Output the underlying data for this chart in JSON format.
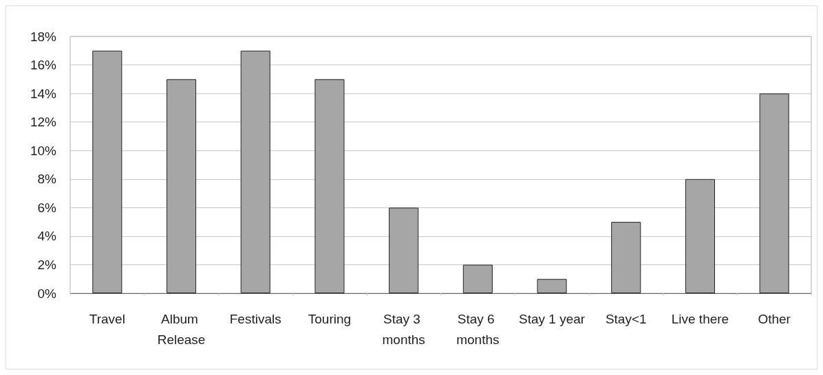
{
  "chart_data": {
    "type": "bar",
    "categories": [
      "Travel",
      "Album Release",
      "Festivals",
      "Touring",
      "Stay 3 months",
      "Stay 6 months",
      "Stay 1 year",
      "Stay<1",
      "Live there",
      "Other"
    ],
    "values": [
      17,
      15,
      17,
      15,
      6,
      2,
      1,
      5,
      8,
      14
    ],
    "color": "#a6a6a6",
    "ylim": [
      0,
      18
    ],
    "yticks": [
      {
        "value": 0,
        "label": "0%"
      },
      {
        "value": 2,
        "label": "2%"
      },
      {
        "value": 4,
        "label": "4%"
      },
      {
        "value": 6,
        "label": "6%"
      },
      {
        "value": 8,
        "label": "8%"
      },
      {
        "value": 10,
        "label": "10%"
      },
      {
        "value": 12,
        "label": "12%"
      },
      {
        "value": 14,
        "label": "14%"
      },
      {
        "value": 16,
        "label": "16%"
      },
      {
        "value": 18,
        "label": "18%"
      }
    ],
    "grid": "y"
  }
}
